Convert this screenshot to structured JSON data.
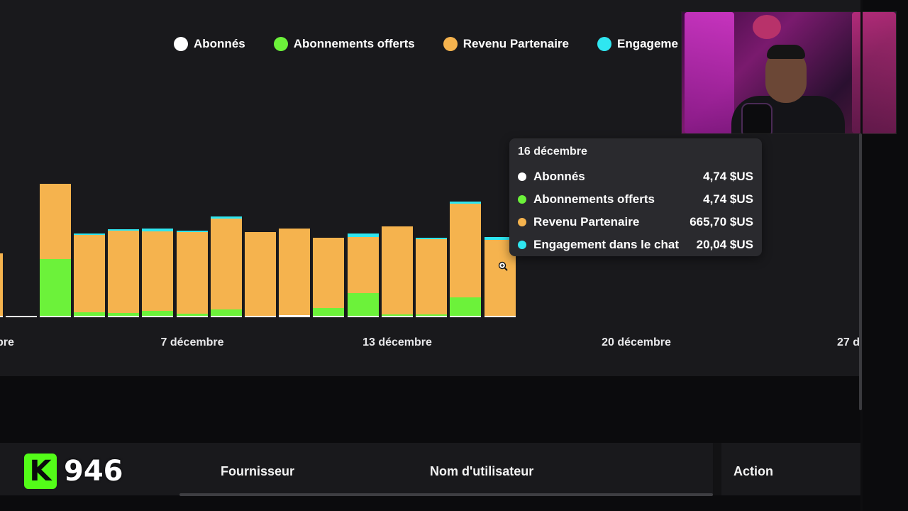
{
  "legend": [
    {
      "label": "Abonnés",
      "color": "#ffffff"
    },
    {
      "label": "Abonnements offerts",
      "color": "#6cf23a"
    },
    {
      "label": "Revenu Partenaire",
      "color": "#f5b34e"
    },
    {
      "label": "Engageme",
      "color": "#2fe6f0"
    }
  ],
  "chart_data": {
    "type": "bar",
    "stacked": true,
    "series": [
      {
        "name": "Abonnés",
        "color": "#ffffff",
        "values": [
          2,
          2,
          2,
          2,
          2,
          2,
          2,
          2,
          2,
          3,
          2,
          2,
          2,
          2,
          2,
          2
        ]
      },
      {
        "name": "Abonnements offerts",
        "color": "#6cf23a",
        "values": [
          0,
          0,
          80,
          5,
          4,
          7,
          3,
          9,
          0,
          0,
          11,
          32,
          2,
          2,
          26,
          0
        ]
      },
      {
        "name": "Revenu Partenaire",
        "color": "#f5b34e",
        "values": [
          88,
          0,
          106,
          109,
          116,
          112,
          115,
          128,
          118,
          122,
          99,
          79,
          124,
          106,
          132,
          107
        ]
      },
      {
        "name": "Engagement dans le chat",
        "color": "#2fe6f0",
        "values": [
          0,
          0,
          0,
          2,
          2,
          4,
          2,
          3,
          0,
          0,
          0,
          5,
          0,
          2,
          3,
          4
        ]
      }
    ],
    "x_tick_labels": [
      "bre",
      "7 décembre",
      "13 décembre",
      "20 décembre",
      "27 d"
    ],
    "tooltip": {
      "date": "16 décembre",
      "rows": [
        {
          "label": "Abonnés",
          "value": "4,74 $US",
          "color": "#ffffff"
        },
        {
          "label": "Abonnements offerts",
          "value": "4,74 $US",
          "color": "#6cf23a"
        },
        {
          "label": "Revenu Partenaire",
          "value": "665,70 $US",
          "color": "#f5b34e"
        },
        {
          "label": "Engagement dans le chat",
          "value": "20,04 $US",
          "color": "#2fe6f0"
        }
      ]
    }
  },
  "table": {
    "headers": {
      "provider": "Fournisseur",
      "username": "Nom d'utilisateur",
      "action": "Action"
    }
  },
  "overlay": {
    "kick_letter": "K",
    "kick_count": "946"
  }
}
